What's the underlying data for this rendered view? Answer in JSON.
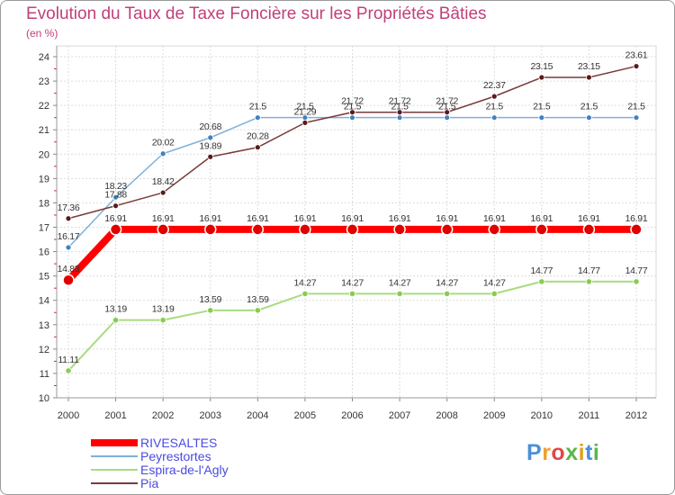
{
  "title": "Evolution du Taux de Taxe Foncière sur les Propriétés Bâties",
  "subtitle": "(en %)",
  "logo": "Proxiti",
  "chart_data": {
    "type": "line",
    "title": "Evolution du Taux de Taxe Foncière sur les Propriétés Bâties",
    "ylabel": "(en %)",
    "xlabel": "",
    "x": [
      "2000",
      "2001",
      "2002",
      "2003",
      "2004",
      "2005",
      "2006",
      "2007",
      "2008",
      "2009",
      "2010",
      "2011",
      "2012"
    ],
    "yticks": [
      "10",
      "11",
      "12",
      "13",
      "14",
      "15",
      "16",
      "17",
      "18",
      "19",
      "20",
      "21",
      "22",
      "23",
      "24"
    ],
    "ylim": [
      10,
      24
    ],
    "grid": true,
    "legend": "bottom-left",
    "series": [
      {
        "name": "RIVESALTES",
        "color": "#ff0000",
        "marker": "#e00000",
        "values": [
          14.83,
          16.91,
          16.91,
          16.91,
          16.91,
          16.91,
          16.91,
          16.91,
          16.91,
          16.91,
          16.91,
          16.91,
          16.91
        ],
        "labels": [
          "14.83",
          "16.91",
          "16.91",
          "16.91",
          "16.91",
          "16.91",
          "16.91",
          "16.91",
          "16.91",
          "16.91",
          "16.91",
          "16.91",
          "16.91"
        ]
      },
      {
        "name": "Peyrestortes",
        "color": "#7fb0d8",
        "marker": "#3f82bf",
        "values": [
          16.17,
          18.23,
          20.02,
          20.68,
          21.5,
          21.5,
          21.5,
          21.5,
          21.5,
          21.5,
          21.5,
          21.5,
          21.5
        ],
        "labels": [
          "16.17",
          "18.23",
          "20.02",
          "20.68",
          "21.5",
          "21.5",
          "21.5",
          "21.5",
          "21.5",
          "21.5",
          "21.5",
          "21.5",
          "21.5"
        ]
      },
      {
        "name": "Espira-de-l'Agly",
        "color": "#a8dc80",
        "marker": "#88cc50",
        "values": [
          11.11,
          13.19,
          13.19,
          13.59,
          13.59,
          14.27,
          14.27,
          14.27,
          14.27,
          14.27,
          14.77,
          14.77,
          14.77
        ],
        "labels": [
          "11.11",
          "13.19",
          "13.19",
          "13.59",
          "13.59",
          "14.27",
          "14.27",
          "14.27",
          "14.27",
          "14.27",
          "14.77",
          "14.77",
          "14.77"
        ]
      },
      {
        "name": "Pia",
        "color": "#7a3a3a",
        "marker": "#5a1a1a",
        "values": [
          17.36,
          17.88,
          18.42,
          19.89,
          20.28,
          21.29,
          21.72,
          21.72,
          21.72,
          22.37,
          23.15,
          23.15,
          23.61
        ],
        "labels": [
          "17.36",
          "17.88",
          "18.42",
          "19.89",
          "20.28",
          "21.29",
          "21.72",
          "21.72",
          "21.72",
          "22.37",
          "23.15",
          "23.15",
          "23.61"
        ]
      }
    ]
  }
}
